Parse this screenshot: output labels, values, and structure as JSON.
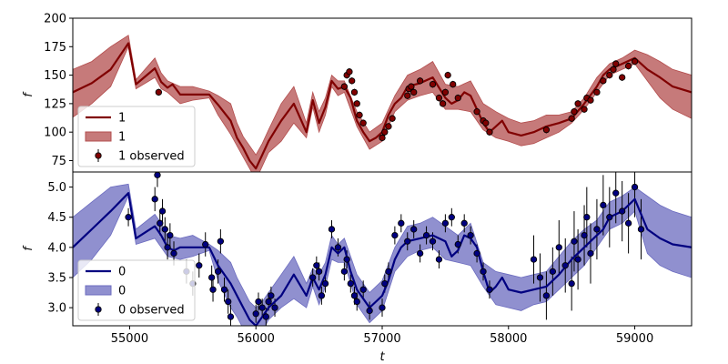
{
  "chart_data": [
    {
      "type": "line",
      "panel": "top",
      "xlabel": "",
      "ylabel": "f",
      "xlim": [
        54550,
        59450
      ],
      "ylim": [
        65,
        200
      ],
      "yticks": [
        75,
        100,
        125,
        150,
        175,
        200
      ],
      "xticks": [],
      "colors": {
        "line": "#800000",
        "band": "#b34d4d",
        "points": "#800000"
      },
      "legend": {
        "placement": "lower-left",
        "entries": [
          {
            "kind": "line",
            "label": "1"
          },
          {
            "kind": "band",
            "label": "1"
          },
          {
            "kind": "points",
            "label": "1 observed"
          }
        ]
      },
      "series": [
        {
          "name": "1",
          "kind": "mean",
          "x": [
            54550,
            54700,
            54850,
            54990,
            55050,
            55200,
            55250,
            55300,
            55340,
            55400,
            55500,
            55630,
            55700,
            55800,
            55850,
            55900,
            55950,
            56000,
            56050,
            56100,
            56200,
            56300,
            56400,
            56450,
            56500,
            56550,
            56600,
            56650,
            56700,
            56750,
            56800,
            56850,
            56900,
            56950,
            57000,
            57050,
            57100,
            57150,
            57200,
            57300,
            57400,
            57500,
            57550,
            57600,
            57650,
            57700,
            57750,
            57800,
            57850,
            57900,
            57950,
            58000,
            58100,
            58200,
            58300,
            58400,
            58500,
            58600,
            58700,
            58750,
            58800,
            58900,
            59000,
            59100,
            59200,
            59300,
            59450
          ],
          "y": [
            135,
            143,
            155,
            178,
            142,
            156,
            144,
            139,
            142,
            133,
            133,
            133,
            124,
            110,
            95,
            86,
            75,
            68,
            80,
            92,
            110,
            125,
            100,
            128,
            108,
            122,
            145,
            138,
            140,
            130,
            110,
            100,
            92,
            95,
            100,
            115,
            125,
            130,
            140,
            143,
            148,
            130,
            125,
            128,
            135,
            132,
            120,
            108,
            100,
            105,
            110,
            100,
            97,
            100,
            105,
            108,
            112,
            125,
            140,
            150,
            155,
            160,
            165,
            155,
            148,
            140,
            135
          ]
        },
        {
          "name": "1",
          "kind": "band",
          "x": [
            54550,
            54700,
            54850,
            54990,
            55050,
            55200,
            55250,
            55300,
            55400,
            55500,
            55630,
            55700,
            55800,
            55850,
            55900,
            55950,
            56000,
            56050,
            56100,
            56200,
            56300,
            56400,
            56450,
            56500,
            56550,
            56600,
            56650,
            56700,
            56800,
            56900,
            57000,
            57100,
            57200,
            57300,
            57400,
            57500,
            57600,
            57700,
            57800,
            57900,
            58000,
            58100,
            58200,
            58300,
            58400,
            58500,
            58600,
            58700,
            58800,
            58900,
            59000,
            59100,
            59200,
            59300,
            59450
          ],
          "y_lower": [
            113,
            125,
            140,
            175,
            138,
            148,
            138,
            135,
            125,
            128,
            130,
            115,
            98,
            88,
            78,
            68,
            58,
            70,
            82,
            92,
            108,
            95,
            122,
            100,
            115,
            140,
            132,
            135,
            105,
            85,
            92,
            118,
            128,
            132,
            135,
            120,
            120,
            118,
            102,
            95,
            92,
            88,
            90,
            95,
            100,
            108,
            120,
            135,
            150,
            155,
            160,
            145,
            130,
            120,
            112
          ],
          "y_upper": [
            155,
            162,
            175,
            185,
            146,
            165,
            152,
            145,
            140,
            140,
            136,
            132,
            125,
            108,
            96,
            88,
            80,
            90,
            102,
            125,
            140,
            108,
            135,
            118,
            130,
            150,
            145,
            145,
            118,
            100,
            108,
            132,
            150,
            155,
            162,
            142,
            140,
            145,
            125,
            118,
            112,
            108,
            110,
            115,
            115,
            118,
            130,
            148,
            160,
            165,
            172,
            168,
            162,
            155,
            150
          ]
        },
        {
          "name": "1 observed",
          "kind": "points",
          "x": [
            55230,
            56700,
            56720,
            56740,
            56760,
            56780,
            56800,
            56820,
            56850,
            57000,
            57020,
            57050,
            57080,
            57200,
            57210,
            57230,
            57250,
            57300,
            57400,
            57450,
            57480,
            57500,
            57520,
            57560,
            57600,
            57750,
            57800,
            57820,
            57850,
            58300,
            58500,
            58520,
            58550,
            58600,
            58620,
            58650,
            58700,
            58750,
            58800,
            58830,
            58850,
            58900,
            58950,
            59000
          ],
          "y": [
            135,
            140,
            150,
            153,
            145,
            135,
            125,
            115,
            108,
            95,
            100,
            105,
            112,
            132,
            138,
            140,
            135,
            145,
            142,
            130,
            125,
            135,
            150,
            142,
            130,
            118,
            110,
            108,
            100,
            102,
            112,
            118,
            125,
            120,
            130,
            128,
            135,
            145,
            150,
            155,
            160,
            148,
            158,
            162
          ],
          "err": [
            3,
            3,
            3,
            3,
            3,
            3,
            3,
            3,
            3,
            3,
            3,
            3,
            3,
            3,
            3,
            3,
            3,
            3,
            3,
            3,
            3,
            3,
            3,
            3,
            3,
            3,
            3,
            3,
            3,
            3,
            3,
            3,
            3,
            3,
            3,
            3,
            3,
            3,
            3,
            3,
            3,
            3,
            3,
            3
          ]
        }
      ]
    },
    {
      "type": "line",
      "panel": "bottom",
      "xlabel": "t",
      "ylabel": "f",
      "xlim": [
        54550,
        59450
      ],
      "ylim": [
        2.7,
        5.25
      ],
      "yticks": [
        3.0,
        3.5,
        4.0,
        4.5,
        5.0
      ],
      "xticks": [
        55000,
        56000,
        57000,
        58000,
        59000
      ],
      "colors": {
        "line": "#000080",
        "band": "#6b6bbf",
        "points": "#000080"
      },
      "legend": {
        "placement": "lower-left",
        "entries": [
          {
            "kind": "line",
            "label": "0"
          },
          {
            "kind": "band",
            "label": "0"
          },
          {
            "kind": "points",
            "label": "0 observed"
          }
        ]
      },
      "series": [
        {
          "name": "0",
          "kind": "mean",
          "x": [
            54550,
            54700,
            54850,
            54990,
            55050,
            55200,
            55250,
            55300,
            55350,
            55400,
            55500,
            55630,
            55700,
            55800,
            55850,
            55900,
            55950,
            56000,
            56050,
            56100,
            56200,
            56300,
            56400,
            56450,
            56500,
            56550,
            56600,
            56650,
            56700,
            56750,
            56800,
            56850,
            56900,
            56950,
            57000,
            57050,
            57100,
            57150,
            57200,
            57300,
            57400,
            57500,
            57550,
            57600,
            57650,
            57700,
            57750,
            57800,
            57850,
            57900,
            57950,
            58000,
            58100,
            58200,
            58300,
            58400,
            58500,
            58600,
            58700,
            58750,
            58800,
            58900,
            59000,
            59100,
            59200,
            59300,
            59450
          ],
          "y": [
            4.0,
            4.3,
            4.6,
            4.9,
            4.15,
            4.35,
            4.2,
            4.0,
            3.95,
            4.0,
            4.0,
            4.0,
            3.7,
            3.4,
            3.2,
            3.0,
            2.8,
            2.7,
            2.85,
            3.0,
            3.2,
            3.55,
            3.2,
            3.5,
            3.3,
            3.55,
            4.0,
            3.9,
            4.0,
            3.6,
            3.3,
            3.15,
            3.0,
            3.1,
            3.2,
            3.45,
            3.8,
            4.0,
            4.1,
            4.15,
            4.2,
            4.1,
            3.85,
            3.95,
            4.2,
            4.15,
            4.0,
            3.6,
            3.25,
            3.35,
            3.5,
            3.3,
            3.25,
            3.3,
            3.35,
            3.55,
            3.8,
            4.0,
            4.2,
            4.3,
            4.5,
            4.6,
            4.8,
            4.3,
            4.15,
            4.05,
            4.0
          ]
        },
        {
          "name": "0",
          "kind": "band",
          "x": [
            54550,
            54700,
            54850,
            54990,
            55050,
            55200,
            55250,
            55300,
            55400,
            55500,
            55630,
            55700,
            55800,
            55850,
            55900,
            55950,
            56000,
            56050,
            56100,
            56200,
            56300,
            56400,
            56450,
            56500,
            56550,
            56600,
            56650,
            56700,
            56800,
            56900,
            57000,
            57100,
            57200,
            57300,
            57400,
            57500,
            57600,
            57700,
            57800,
            57900,
            58000,
            58100,
            58200,
            58300,
            58400,
            58500,
            58600,
            58700,
            58800,
            58900,
            59000,
            59100,
            59200,
            59300,
            59450
          ],
          "y_lower": [
            3.5,
            3.8,
            4.2,
            4.85,
            4.05,
            4.15,
            4.0,
            3.85,
            3.8,
            3.85,
            3.95,
            3.45,
            3.0,
            2.85,
            2.65,
            2.5,
            2.4,
            2.6,
            2.8,
            3.0,
            3.15,
            3.0,
            3.35,
            3.05,
            3.35,
            3.8,
            3.75,
            3.75,
            3.05,
            2.75,
            2.95,
            3.6,
            3.85,
            3.95,
            4.0,
            3.8,
            3.75,
            3.7,
            3.35,
            3.05,
            3.0,
            2.95,
            3.05,
            3.1,
            3.3,
            3.5,
            3.7,
            4.0,
            4.3,
            4.4,
            4.6,
            3.9,
            3.7,
            3.6,
            3.5
          ],
          "y_upper": [
            4.5,
            4.75,
            5.0,
            5.05,
            4.3,
            4.55,
            4.4,
            4.2,
            4.15,
            4.2,
            4.05,
            3.95,
            3.75,
            3.5,
            3.3,
            3.1,
            3.0,
            3.1,
            3.25,
            3.55,
            3.85,
            3.4,
            3.65,
            3.55,
            3.75,
            4.2,
            4.05,
            4.15,
            3.55,
            3.25,
            3.45,
            4.0,
            4.35,
            4.4,
            4.5,
            4.35,
            4.2,
            4.4,
            3.75,
            3.6,
            3.55,
            3.5,
            3.55,
            3.6,
            3.85,
            4.1,
            4.3,
            4.45,
            4.75,
            4.85,
            5.0,
            4.85,
            4.7,
            4.6,
            4.5
          ]
        },
        {
          "name": "0 observed",
          "kind": "points",
          "x": [
            54990,
            55200,
            55220,
            55240,
            55260,
            55280,
            55300,
            55320,
            55350,
            55450,
            55500,
            55550,
            55600,
            55650,
            55660,
            55700,
            55720,
            55750,
            55780,
            55800,
            56000,
            56020,
            56050,
            56080,
            56100,
            56120,
            56150,
            56450,
            56480,
            56500,
            56520,
            56550,
            56600,
            56650,
            56700,
            56720,
            56750,
            56780,
            56800,
            56850,
            56900,
            57000,
            57020,
            57050,
            57100,
            57150,
            57200,
            57250,
            57300,
            57350,
            57400,
            57450,
            57500,
            57550,
            57600,
            57650,
            57700,
            57750,
            57800,
            57850,
            58200,
            58250,
            58300,
            58350,
            58400,
            58450,
            58500,
            58520,
            58550,
            58600,
            58620,
            58650,
            58700,
            58750,
            58800,
            58850,
            58900,
            58950,
            59000,
            59050
          ],
          "y": [
            4.5,
            4.8,
            5.2,
            4.4,
            4.6,
            4.3,
            4.0,
            4.2,
            3.9,
            3.6,
            3.4,
            3.7,
            4.05,
            3.5,
            3.3,
            3.6,
            4.1,
            3.3,
            3.1,
            2.85,
            2.9,
            3.1,
            3.0,
            2.85,
            3.1,
            3.2,
            3.0,
            3.5,
            3.7,
            3.6,
            3.2,
            3.4,
            4.3,
            4.0,
            3.6,
            3.8,
            3.4,
            3.2,
            3.1,
            3.3,
            2.95,
            3.0,
            3.4,
            3.6,
            4.2,
            4.4,
            4.1,
            4.3,
            3.9,
            4.2,
            4.1,
            3.8,
            4.4,
            4.5,
            4.05,
            4.4,
            4.2,
            3.9,
            3.6,
            3.3,
            3.8,
            3.5,
            3.2,
            3.6,
            4.0,
            3.7,
            3.4,
            4.1,
            3.8,
            4.2,
            4.5,
            3.9,
            4.3,
            4.7,
            4.5,
            4.9,
            4.6,
            4.4,
            5.0,
            4.3
          ],
          "err": [
            0.15,
            0.2,
            0.2,
            0.2,
            0.2,
            0.2,
            0.2,
            0.2,
            0.2,
            0.2,
            0.2,
            0.2,
            0.2,
            0.2,
            0.2,
            0.2,
            0.2,
            0.2,
            0.2,
            0.2,
            0.15,
            0.15,
            0.15,
            0.15,
            0.15,
            0.15,
            0.15,
            0.15,
            0.15,
            0.15,
            0.15,
            0.15,
            0.15,
            0.15,
            0.15,
            0.15,
            0.15,
            0.15,
            0.15,
            0.15,
            0.15,
            0.15,
            0.15,
            0.15,
            0.15,
            0.15,
            0.15,
            0.15,
            0.15,
            0.15,
            0.15,
            0.15,
            0.15,
            0.15,
            0.15,
            0.15,
            0.15,
            0.15,
            0.15,
            0.15,
            0.4,
            0.4,
            0.4,
            0.4,
            0.45,
            0.45,
            0.45,
            0.5,
            0.5,
            0.5,
            0.5,
            0.5,
            0.5,
            0.5,
            0.5,
            0.5,
            0.5,
            0.5,
            0.5,
            0.5
          ]
        }
      ]
    }
  ]
}
